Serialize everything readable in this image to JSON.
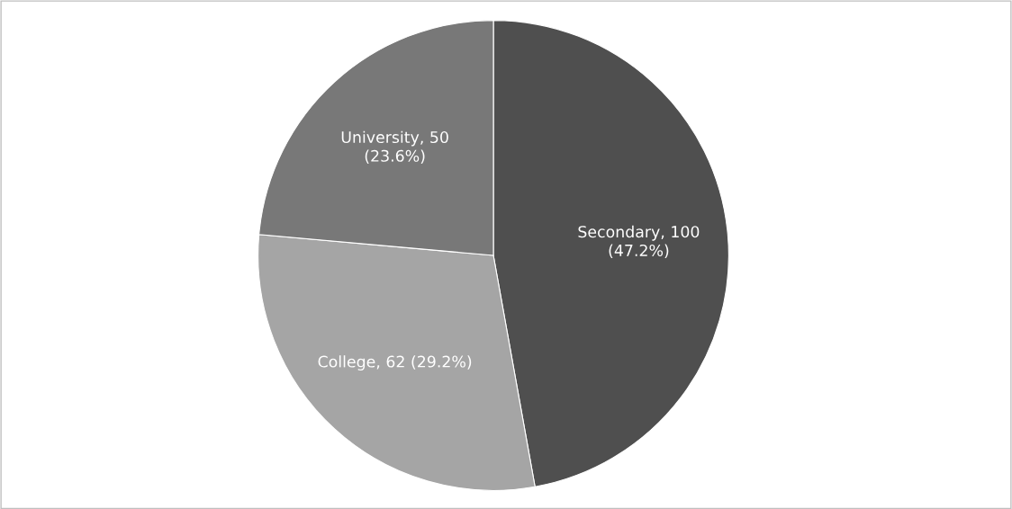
{
  "chart_data": {
    "type": "pie",
    "categories": [
      "Secondary",
      "College",
      "University"
    ],
    "values": [
      100,
      62,
      50
    ],
    "colors": [
      "#4f4f4f",
      "#a5a5a5",
      "#787878"
    ],
    "value_labels": [
      "100 (47.2%)",
      "62 (29.2%)",
      "50 (23.6%)"
    ],
    "legend": false
  }
}
